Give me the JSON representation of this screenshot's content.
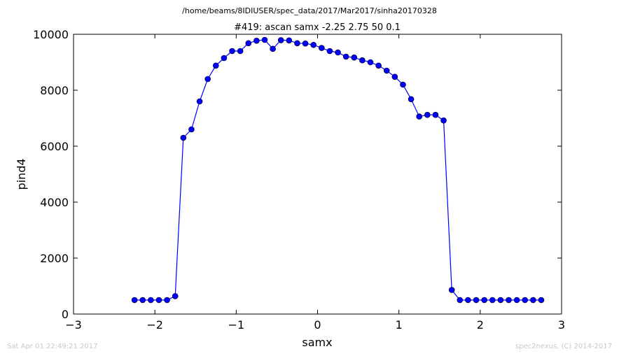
{
  "header": {
    "path": "/home/beams/8IDIUSER/spec_data/2017/Mar2017/sinha20170328"
  },
  "footer": {
    "timestamp": "Sat Apr 01 22:49:21 2017",
    "credit": "spec2nexus, (C) 2014-2017"
  },
  "colors": {
    "series": "#0000ff",
    "axes": "#000000",
    "footer_text": "#c8c8c8"
  },
  "chart_data": {
    "type": "line",
    "title": "#419: ascan  samx -2.25 2.75  50 0.1",
    "xlabel": "samx",
    "ylabel": "pind4",
    "xlim": [
      -3,
      3
    ],
    "ylim": [
      0,
      10000
    ],
    "x_ticks": [
      -3,
      -2,
      -1,
      0,
      1,
      2,
      3
    ],
    "x_tick_labels": [
      "−3",
      "−2",
      "−1",
      "0",
      "1",
      "2",
      "3"
    ],
    "y_ticks": [
      0,
      2000,
      4000,
      6000,
      8000,
      10000
    ],
    "y_tick_labels": [
      "0",
      "2000",
      "4000",
      "6000",
      "8000",
      "10000"
    ],
    "grid": false,
    "marker": "circle",
    "series": [
      {
        "x": [
          -2.25,
          -2.15,
          -2.05,
          -1.95,
          -1.85,
          -1.75,
          -1.65,
          -1.55,
          -1.45,
          -1.35,
          -1.25,
          -1.15,
          -1.05,
          -0.95,
          -0.85,
          -0.75,
          -0.65,
          -0.55,
          -0.45,
          -0.35,
          -0.25,
          -0.15,
          -0.05,
          0.05,
          0.15,
          0.25,
          0.35,
          0.45,
          0.55,
          0.65,
          0.75,
          0.85,
          0.95,
          1.05,
          1.15,
          1.25,
          1.35,
          1.45,
          1.55,
          1.65,
          1.75,
          1.85,
          1.95,
          2.05,
          2.15,
          2.25,
          2.35,
          2.45,
          2.55,
          2.65,
          2.75
        ],
        "y": [
          500,
          500,
          500,
          500,
          500,
          640,
          6300,
          6600,
          7600,
          8400,
          8880,
          9150,
          9400,
          9400,
          9680,
          9770,
          9800,
          9480,
          9790,
          9780,
          9680,
          9670,
          9620,
          9510,
          9400,
          9350,
          9200,
          9170,
          9070,
          9000,
          8880,
          8700,
          8480,
          8200,
          7680,
          7060,
          7120,
          7120,
          6920,
          860,
          500,
          500,
          500,
          500,
          500,
          500,
          500,
          500,
          500,
          500,
          500
        ]
      }
    ]
  }
}
